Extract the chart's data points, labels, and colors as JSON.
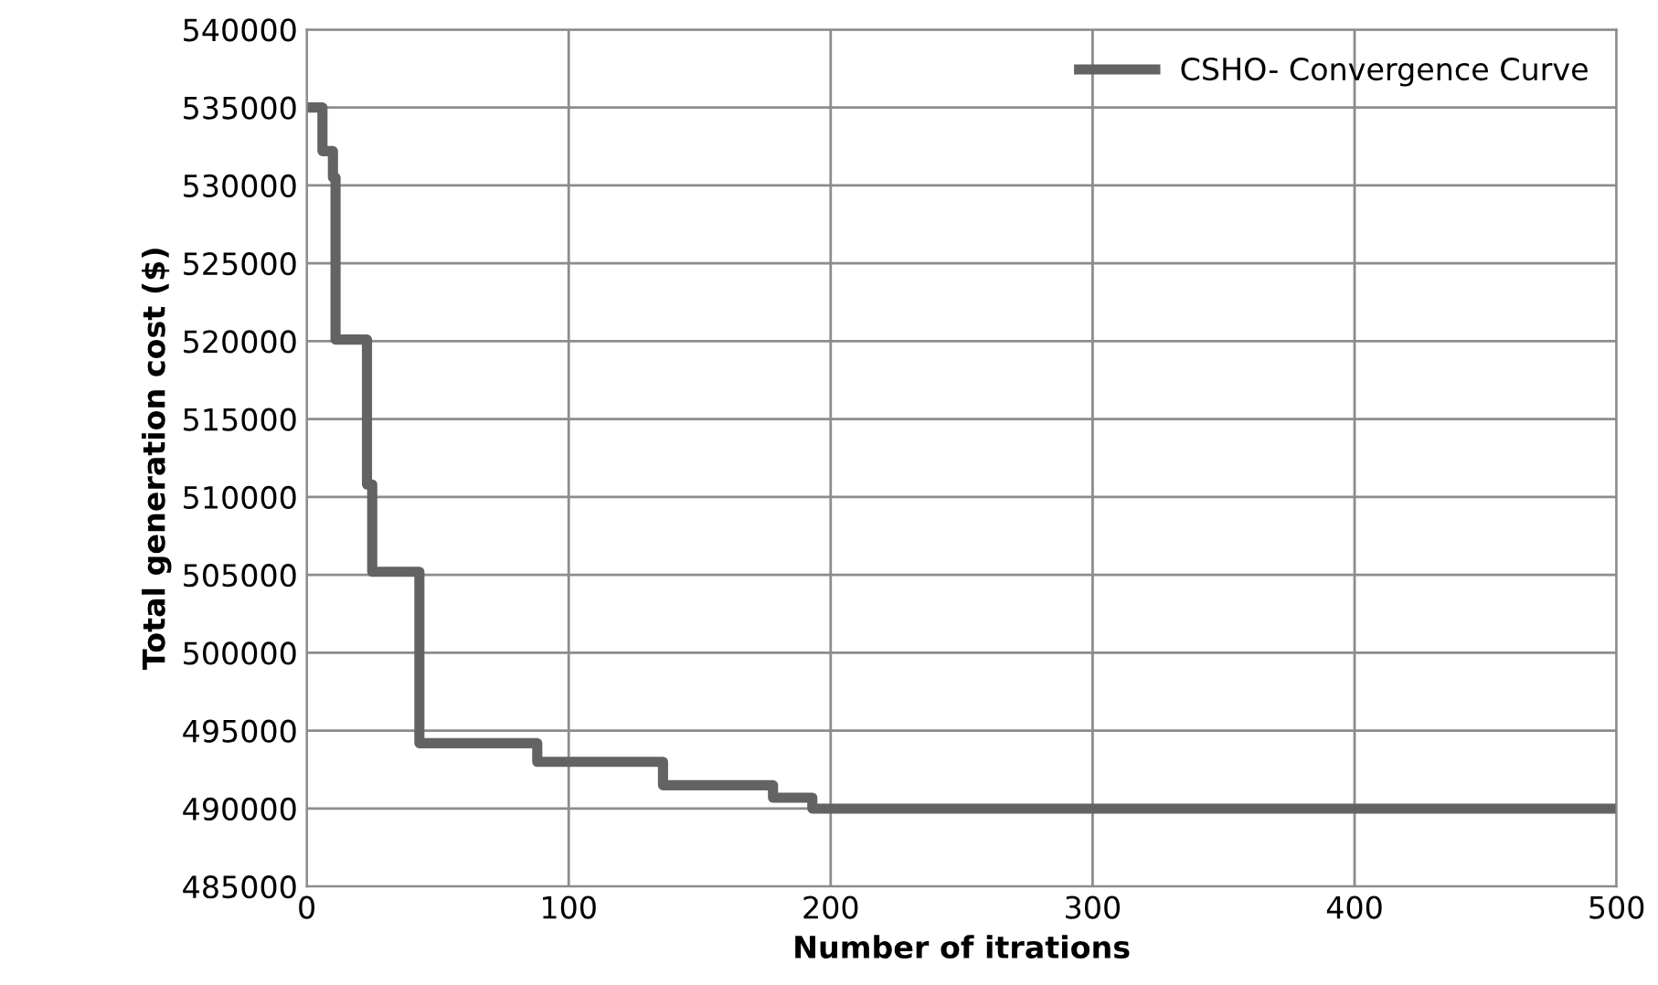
{
  "chart_data": {
    "type": "step",
    "xlabel": "Number of itrations",
    "ylabel": "Total generation cost ($)",
    "xlim": [
      0,
      500
    ],
    "xticks": [
      0,
      100,
      200,
      300,
      400,
      500
    ],
    "ylim": [
      485000,
      540000
    ],
    "yticks": [
      485000,
      490000,
      495000,
      500000,
      505000,
      510000,
      515000,
      520000,
      525000,
      530000,
      535000,
      540000
    ],
    "grid": true,
    "legend": "top right",
    "marker": "none",
    "line_style": "solid",
    "series": [
      {
        "name": "CSHO- Convergence Curve",
        "color": "#636363",
        "x": [
          1,
          6,
          10,
          11,
          23,
          25,
          43,
          88,
          136,
          178,
          193,
          500
        ],
        "values": [
          535000,
          532200,
          530500,
          520100,
          510800,
          505200,
          494200,
          493000,
          491500,
          490700,
          490000,
          490000
        ]
      }
    ]
  }
}
